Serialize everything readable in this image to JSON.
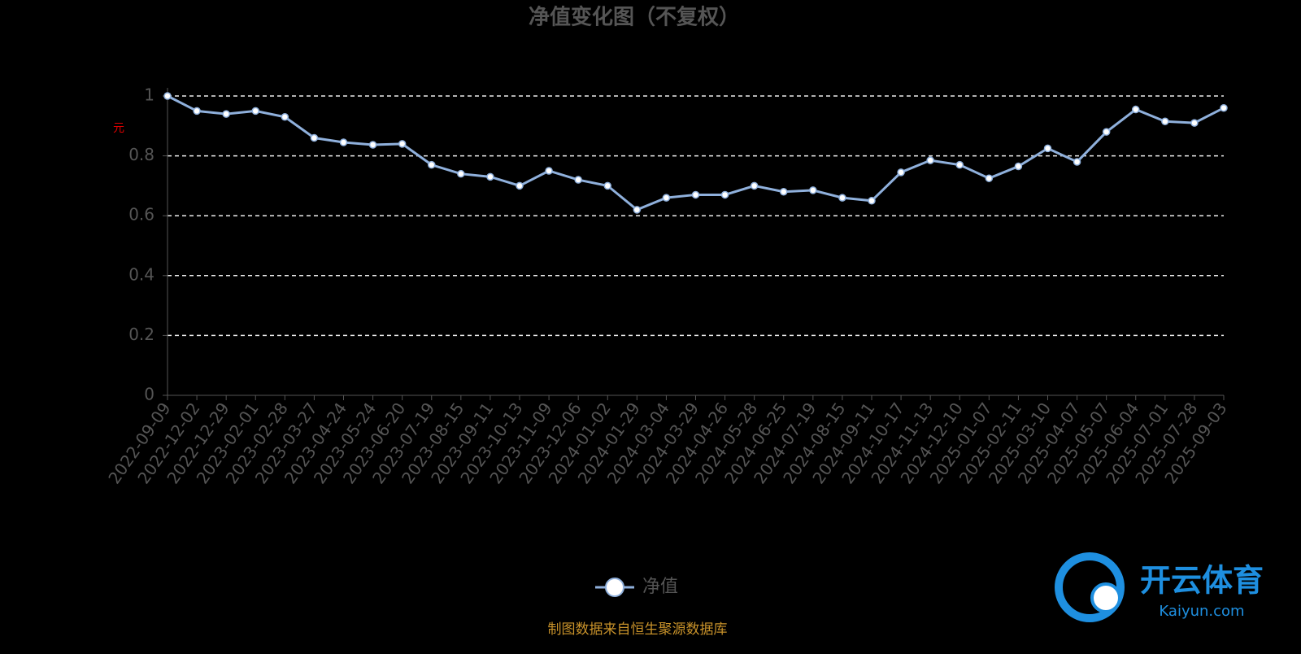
{
  "chart_data": {
    "type": "line",
    "title": "净值变化图（不复权）",
    "y_label": "元",
    "source_note": "制图数据来自恒生聚源数据库",
    "watermark": {
      "brand": "开云体育",
      "site": "Kaiyun.com"
    },
    "categories": [
      "2022-09-09",
      "2022-12-02",
      "2022-12-29",
      "2023-02-01",
      "2023-02-28",
      "2023-03-27",
      "2023-04-24",
      "2023-05-24",
      "2023-06-20",
      "2023-07-19",
      "2023-08-15",
      "2023-09-11",
      "2023-10-13",
      "2023-11-09",
      "2023-12-06",
      "2024-01-02",
      "2024-01-29",
      "2024-03-04",
      "2024-03-29",
      "2024-04-26",
      "2024-05-28",
      "2024-06-25",
      "2024-07-19",
      "2024-08-15",
      "2024-09-11",
      "2024-10-17",
      "2024-11-13",
      "2024-12-10",
      "2025-01-07",
      "2025-02-11",
      "2025-03-10",
      "2025-04-07",
      "2025-05-07",
      "2025-06-04",
      "2025-07-01",
      "2025-07-28",
      "2025-09-03"
    ],
    "series": [
      {
        "name": "净值",
        "color": "#8fb0dc",
        "values": [
          1.0,
          0.95,
          0.94,
          0.95,
          0.93,
          0.86,
          0.845,
          0.837,
          0.84,
          0.77,
          0.74,
          0.73,
          0.7,
          0.75,
          0.72,
          0.7,
          0.62,
          0.66,
          0.67,
          0.67,
          0.7,
          0.68,
          0.685,
          0.66,
          0.65,
          0.745,
          0.785,
          0.77,
          0.725,
          0.765,
          0.825,
          0.78,
          0.88,
          0.955,
          0.915,
          0.91,
          0.96
        ]
      }
    ],
    "ylim": [
      0,
      1
    ],
    "yticks": [
      0,
      0.2,
      0.4,
      0.6,
      0.8,
      1
    ],
    "grid": true
  }
}
